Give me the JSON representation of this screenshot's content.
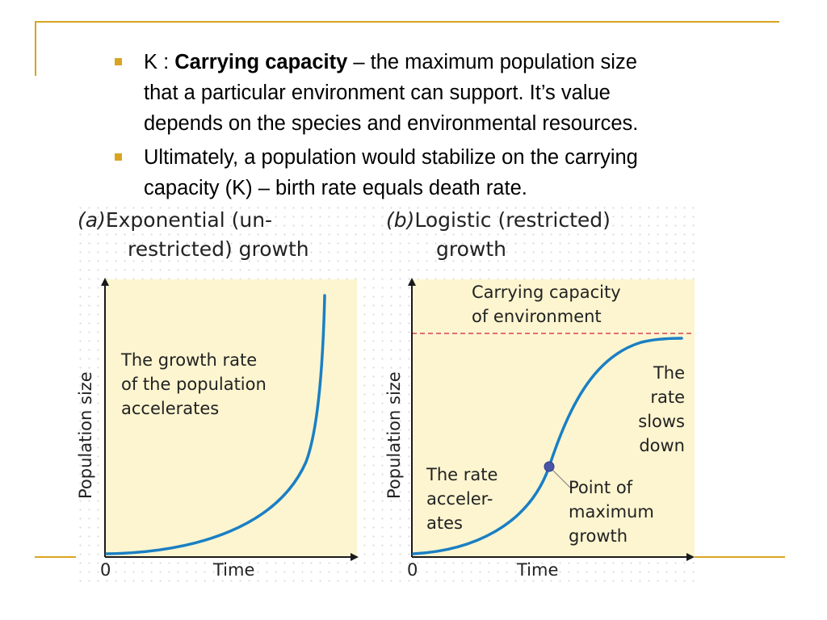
{
  "bullets": [
    {
      "prefix": "K : ",
      "bold": "Carrying capacity",
      "rest_line1": " – the maximum population size",
      "line2": "that a particular environment can support.  It’s value",
      "line3": "depends on the species and environmental resources."
    },
    {
      "line1": "Ultimately, a population would stabilize on the carrying",
      "line2": "capacity (K) – birth rate equals death rate."
    }
  ],
  "panel_a": {
    "label": "(a)",
    "title_line1": "Exponential (un-",
    "title_line2": "restricted) growth",
    "y_axis": "Population size",
    "x_axis": "Time",
    "origin": "0",
    "annotation": [
      "The growth rate",
      "of the population",
      "accelerates"
    ]
  },
  "panel_b": {
    "label": "(b)",
    "title_line1": "Logistic (restricted)",
    "title_line2": "growth",
    "y_axis": "Population size",
    "x_axis": "Time",
    "origin": "0",
    "capacity_label": [
      "Carrying capacity",
      "of environment"
    ],
    "slows_label": [
      "The",
      "rate",
      "slows",
      "down"
    ],
    "accelerates_label": [
      "The rate",
      "acceler-",
      "ates"
    ],
    "point_label": [
      "Point of",
      "maximum",
      "growth"
    ]
  },
  "colors": {
    "accent": "#d9a521",
    "plot_background": "#fcf5d0",
    "curve": "#1a7fc4",
    "capacity_line": "#d94055",
    "point": "#4a55a8"
  },
  "icons": {
    "bullet": "square-bullet-icon",
    "axis_arrow": "arrow-icon"
  }
}
